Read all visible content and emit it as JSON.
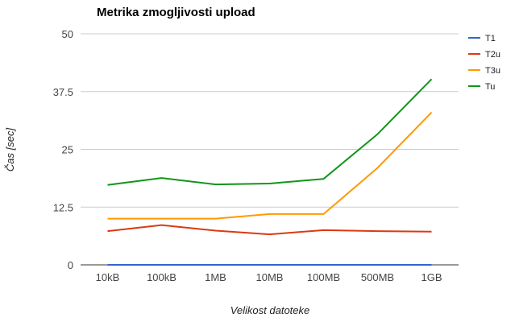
{
  "chart_data": {
    "type": "line",
    "title": "Metrika zmogljivosti upload",
    "xlabel": "Velikost datoteke",
    "ylabel": "Čas [sec]",
    "categories": [
      "10kB",
      "100kB",
      "1MB",
      "10MB",
      "100MB",
      "500MB",
      "1GB"
    ],
    "ylim": [
      0,
      50
    ],
    "yticks": [
      0,
      12.5,
      25,
      37.5,
      50
    ],
    "ytick_labels": [
      "0",
      "12.5",
      "25",
      "37.5",
      "50"
    ],
    "grid": true,
    "legend_position": "right",
    "series": [
      {
        "name": "T1",
        "color": "#3366cc",
        "values": [
          0,
          0,
          0,
          0,
          0,
          0,
          0
        ]
      },
      {
        "name": "T2u",
        "color": "#dc3912",
        "values": [
          7.3,
          8.6,
          7.4,
          6.6,
          7.5,
          7.3,
          7.2
        ]
      },
      {
        "name": "T3u",
        "color": "#ff9900",
        "values": [
          10.0,
          10.0,
          10.0,
          11.0,
          11.0,
          21.0,
          33.0
        ]
      },
      {
        "name": "Tu",
        "color": "#109618",
        "values": [
          17.3,
          18.8,
          17.4,
          17.6,
          18.6,
          28.3,
          40.2
        ]
      }
    ]
  }
}
